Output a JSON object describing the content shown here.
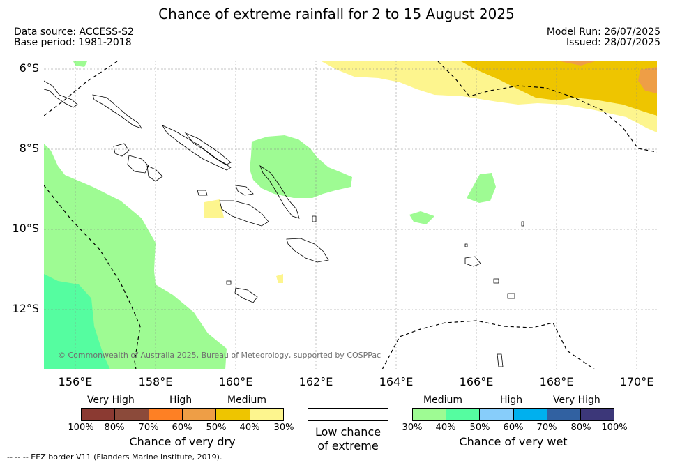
{
  "header": {
    "title": "Chance of extreme rainfall for 2 to 15 August 2025",
    "data_source": "Data source: ACCESS-S2",
    "base_period": "Base period: 1981-2018",
    "model_run": "Model Run: 26/07/2025",
    "issued": "Issued: 28/07/2025"
  },
  "map": {
    "lat_labels": [
      "6°S",
      "8°S",
      "10°S",
      "12°S"
    ],
    "lon_labels": [
      "156°E",
      "158°E",
      "160°E",
      "162°E",
      "164°E",
      "166°E",
      "168°E",
      "170°E"
    ],
    "copyright": "© Commonwealth of Australia 2025, Bureau of Meteorology, supported by COSPPac",
    "colors": {
      "dry_30": "#fdf58e",
      "dry_40": "#eec500",
      "dry_50": "#ee9e46",
      "wet_30": "#9efb93",
      "wet_40": "#55fda0",
      "eez": "#000000",
      "coast": "#000000"
    }
  },
  "legend": {
    "dry": {
      "categories": [
        "Very High",
        "High",
        "Medium"
      ],
      "colors": [
        "#8b3a32",
        "#8b4a3a",
        "#fe8024",
        "#ee9e46",
        "#eec500",
        "#fdf58e"
      ],
      "ticks": [
        "100%",
        "80%",
        "70%",
        "60%",
        "50%",
        "40%",
        "30%"
      ],
      "title": "Chance of very dry"
    },
    "neutral": {
      "line1": "Low chance",
      "line2": "of extreme"
    },
    "wet": {
      "categories": [
        "Medium",
        "High",
        "Very High"
      ],
      "colors": [
        "#9efb93",
        "#55fda0",
        "#87cdfa",
        "#00b0ee",
        "#3161a1",
        "#3c3779"
      ],
      "ticks": [
        "30%",
        "40%",
        "50%",
        "60%",
        "70%",
        "80%",
        "100%"
      ],
      "title": "Chance of very wet"
    }
  },
  "footer": {
    "eez_note": "--  --  -- EEZ border V11 (Flanders Marine Institute, 2019)."
  }
}
